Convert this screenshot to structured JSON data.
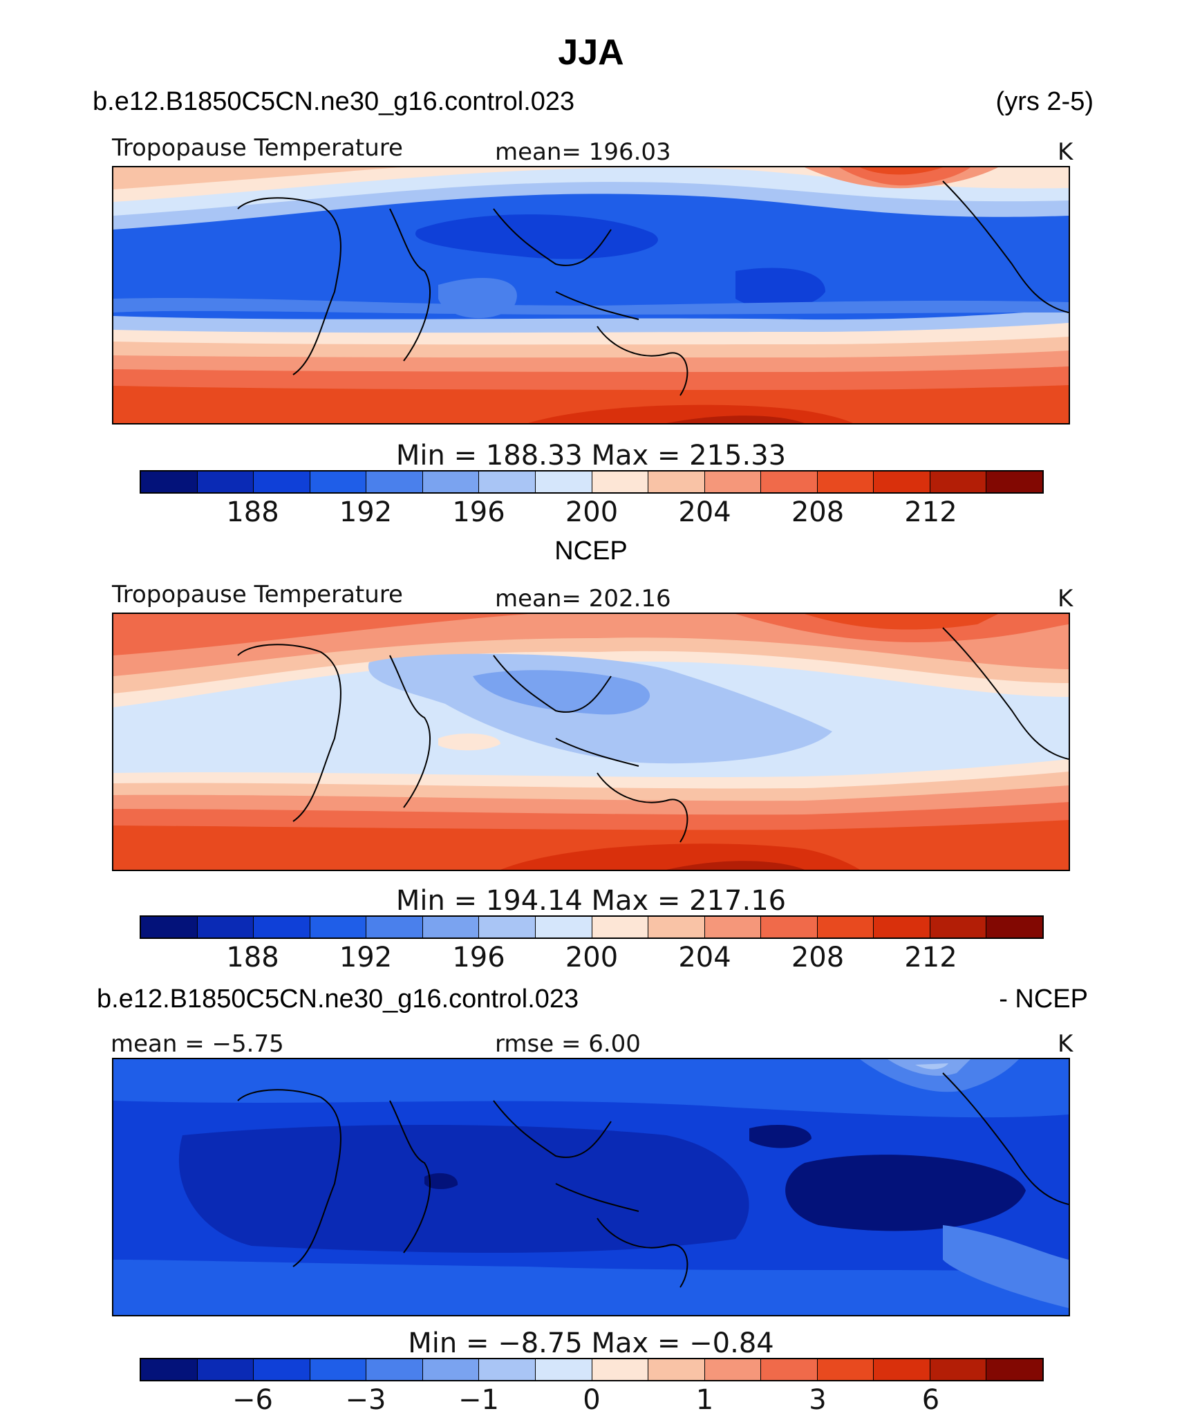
{
  "header": {
    "title": "JJA",
    "case_name": "b.e12.B1850C5CN.ne30_g16.control.023",
    "years": "(yrs 2-5)"
  },
  "panels": [
    {
      "label": "Tropopause  Temperature",
      "mean_text": "mean=  196.03",
      "units": "K",
      "minmax_text": "Min  =  188.33  Max  =  215.33",
      "colorbar_ticks": [
        "188",
        "192",
        "196",
        "200",
        "204",
        "208",
        "212"
      ]
    },
    {
      "label": "Tropopause  Temperature",
      "mean_text": "mean=  202.16",
      "units": "K",
      "minmax_text": "Min  =  194.14  Max  =  217.16",
      "colorbar_ticks": [
        "188",
        "192",
        "196",
        "200",
        "204",
        "208",
        "212"
      ]
    },
    {
      "label": "mean  =   −5.75",
      "mean_text": "rmse  =     6.00",
      "units": "K",
      "minmax_text": "Min  =    −8.75  Max  =    −0.84",
      "colorbar_ticks": [
        "−6",
        "−3",
        "−1",
        "0",
        "1",
        "3",
        "6"
      ]
    }
  ],
  "middle_title": "NCEP",
  "diff_title_left": "b.e12.B1850C5CN.ne30_g16.control.023",
  "diff_title_right": "- NCEP",
  "colormap": [
    "#03127a",
    "#0a2ab5",
    "#0f40d8",
    "#1f5ee8",
    "#4a80ec",
    "#7aa3f0",
    "#a9c5f5",
    "#d5e6fb",
    "#fde6d6",
    "#f9c3a6",
    "#f5977a",
    "#f06a4a",
    "#e84a1f",
    "#d9300c",
    "#b31e06",
    "#820802"
  ],
  "chart_data": [
    {
      "type": "heatmap",
      "title": "Tropopause  Temperature",
      "subtitle": "b.e12.B1850C5CN.ne30_g16.control.023",
      "mean": 196.03,
      "units": "K",
      "min": 188.33,
      "max": 215.33,
      "colorbar_levels": [
        188,
        192,
        196,
        200,
        204,
        208,
        212
      ]
    },
    {
      "type": "heatmap",
      "title": "Tropopause  Temperature",
      "subtitle": "NCEP",
      "mean": 202.16,
      "units": "K",
      "min": 194.14,
      "max": 217.16,
      "colorbar_levels": [
        188,
        192,
        196,
        200,
        204,
        208,
        212
      ]
    },
    {
      "type": "heatmap",
      "subtitle": "b.e12.B1850C5CN.ne30_g16.control.023 - NCEP",
      "mean": -5.75,
      "rmse": 6.0,
      "units": "K",
      "min": -8.75,
      "max": -0.84,
      "colorbar_levels": [
        -6,
        -3,
        -1,
        0,
        1,
        3,
        6
      ]
    }
  ]
}
